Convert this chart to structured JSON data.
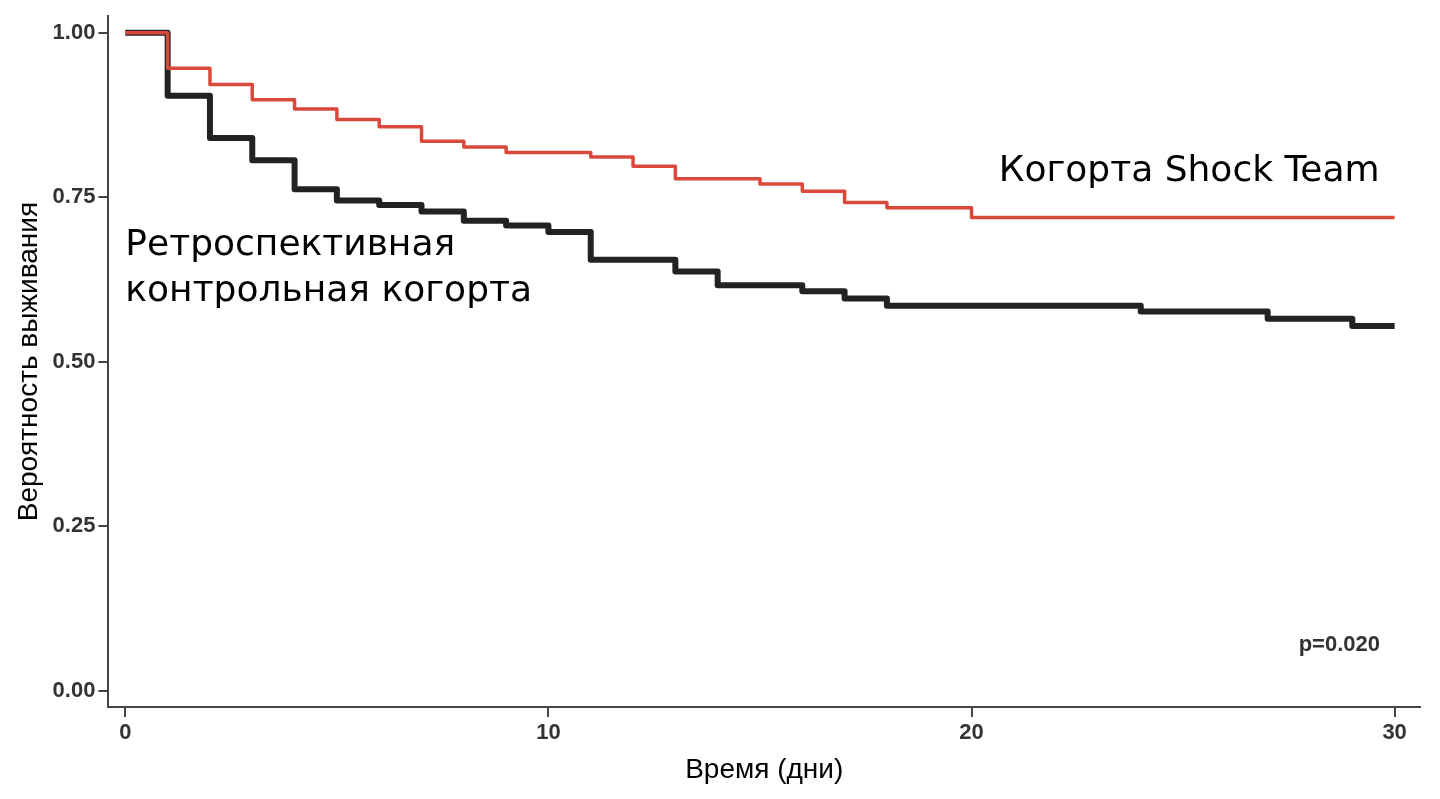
{
  "chart_data": {
    "type": "step",
    "xlabel": "Время (дни)",
    "ylabel": "Вероятность выживания",
    "xlim": [
      -0.4,
      30.6
    ],
    "ylim": [
      -0.025,
      1.025
    ],
    "xticks": [
      0,
      10,
      20,
      30
    ],
    "yticks": [
      {
        "value": 0,
        "label": "0.00"
      },
      {
        "value": 0.25,
        "label": "0.25"
      },
      {
        "value": 0.5,
        "label": "0.50"
      },
      {
        "value": 0.75,
        "label": "0.75"
      },
      {
        "value": 1,
        "label": "1.00"
      }
    ],
    "grid": false,
    "legend": false,
    "marker": "none",
    "line_style": "solid",
    "annotations": [
      "p=0.020"
    ],
    "series": [
      {
        "name": "Когорта Shock Team",
        "color": "#d9483b",
        "x": [
          0,
          1,
          2,
          3,
          4,
          5,
          6,
          7,
          8,
          9,
          11,
          12,
          13,
          15,
          16,
          17,
          18,
          20,
          30
        ],
        "values": [
          1,
          0.946,
          0.921,
          0.898,
          0.884,
          0.868,
          0.857,
          0.835,
          0.826,
          0.818,
          0.811,
          0.797,
          0.778,
          0.77,
          0.759,
          0.742,
          0.734,
          0.719,
          0.719
        ]
      },
      {
        "name": "Ретроспективная\nконтрольная когорта",
        "color": "#222222",
        "x": [
          0,
          1,
          2,
          3,
          4,
          5,
          6,
          7,
          8,
          9,
          10,
          11,
          13,
          14,
          16,
          17,
          18,
          24,
          27,
          29,
          30
        ],
        "values": [
          1,
          0.904,
          0.84,
          0.806,
          0.762,
          0.745,
          0.738,
          0.728,
          0.714,
          0.707,
          0.697,
          0.655,
          0.637,
          0.616,
          0.607,
          0.596,
          0.585,
          0.576,
          0.565,
          0.554,
          0.554
        ]
      }
    ]
  }
}
